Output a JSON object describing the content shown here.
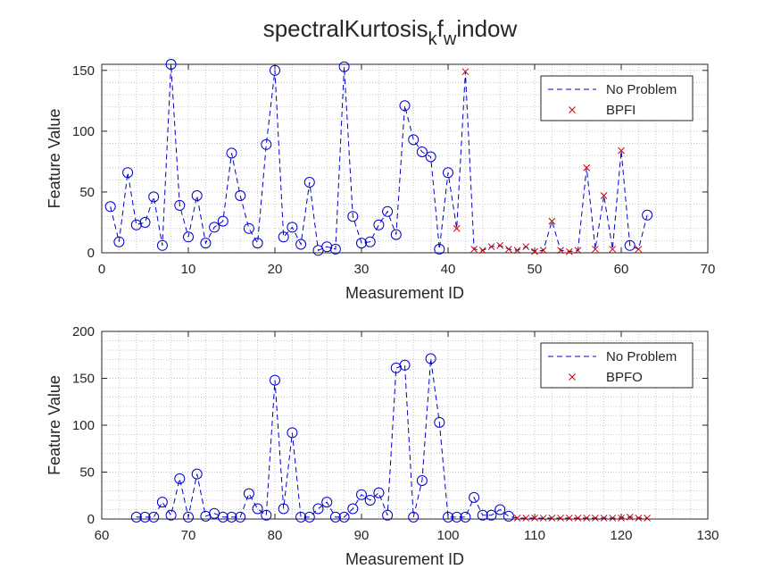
{
  "figure": {
    "title_main": "spectralKurtosis",
    "title_sub1": "k",
    "title_mid": "f",
    "title_sub2": "w",
    "title_end": "indow"
  },
  "chart_data": [
    {
      "type": "line",
      "xlabel": "Measurement ID",
      "ylabel": "Feature Value",
      "xlim": [
        0,
        70
      ],
      "ylim": [
        0,
        155
      ],
      "xticks": [
        0,
        10,
        20,
        30,
        40,
        50,
        60,
        70
      ],
      "yticks": [
        0,
        50,
        100,
        150
      ],
      "grid": "minor-dotted",
      "legend_position": "top-right",
      "legend": [
        "No Problem",
        "BPFI"
      ],
      "line_color": "#0000cc",
      "fault_color": "#cc0000",
      "x": [
        1,
        2,
        3,
        4,
        5,
        6,
        7,
        8,
        9,
        10,
        11,
        12,
        13,
        14,
        15,
        16,
        17,
        18,
        19,
        20,
        21,
        22,
        23,
        24,
        25,
        26,
        27,
        28,
        29,
        30,
        31,
        32,
        33,
        34,
        35,
        36,
        37,
        38,
        39,
        40,
        41,
        42,
        43,
        44,
        45,
        46,
        47,
        48,
        49,
        50,
        51,
        52,
        53,
        54,
        55,
        56,
        57,
        58,
        59,
        60,
        61,
        62,
        63
      ],
      "y": [
        38,
        9,
        66,
        23,
        25,
        46,
        6,
        155,
        39,
        13,
        47,
        8,
        21,
        26,
        82,
        47,
        20,
        8,
        89,
        150,
        13,
        21,
        7,
        58,
        2,
        5,
        3,
        153,
        30,
        8,
        9,
        23,
        34,
        15,
        121,
        93,
        83,
        79,
        3,
        66,
        20,
        149,
        3,
        2,
        5,
        6,
        3,
        2,
        5,
        1,
        2,
        26,
        2,
        1,
        2,
        70,
        3,
        47,
        3,
        84,
        6,
        3,
        31
      ],
      "markers": [
        "o",
        "o",
        "o",
        "o",
        "o",
        "o",
        "o",
        "o",
        "o",
        "o",
        "o",
        "o",
        "o",
        "o",
        "o",
        "o",
        "o",
        "o",
        "o",
        "o",
        "o",
        "o",
        "o",
        "o",
        "o",
        "o",
        "o",
        "o",
        "o",
        "o",
        "o",
        "o",
        "o",
        "o",
        "o",
        "o",
        "o",
        "o",
        "o",
        "o",
        "x",
        "x",
        "x",
        "x",
        "x",
        "x",
        "x",
        "x",
        "x",
        "x",
        "x",
        "x",
        "x",
        "x",
        "x",
        "x",
        "x",
        "x",
        "x",
        "x",
        "o",
        "x",
        "o"
      ]
    },
    {
      "type": "line",
      "xlabel": "Measurement ID",
      "ylabel": "Feature Value",
      "xlim": [
        60,
        130
      ],
      "ylim": [
        0,
        200
      ],
      "xticks": [
        60,
        70,
        80,
        90,
        100,
        110,
        120,
        130
      ],
      "yticks": [
        0,
        50,
        100,
        150,
        200
      ],
      "grid": "minor-dotted",
      "legend_position": "top-right",
      "legend": [
        "No Problem",
        "BPFO"
      ],
      "line_color": "#0000cc",
      "fault_color": "#cc0000",
      "x": [
        64,
        65,
        66,
        67,
        68,
        69,
        70,
        71,
        72,
        73,
        74,
        75,
        76,
        77,
        78,
        79,
        80,
        81,
        82,
        83,
        84,
        85,
        86,
        87,
        88,
        89,
        90,
        91,
        92,
        93,
        94,
        95,
        96,
        97,
        98,
        99,
        100,
        101,
        102,
        103,
        104,
        105,
        106,
        107,
        108,
        109,
        110,
        111,
        112,
        113,
        114,
        115,
        116,
        117,
        118,
        119,
        120,
        121,
        122,
        123
      ],
      "y": [
        2,
        2,
        2,
        18,
        4,
        43,
        2,
        48,
        3,
        6,
        2,
        2,
        2,
        27,
        11,
        4,
        148,
        11,
        92,
        2,
        2,
        11,
        18,
        2,
        2,
        11,
        26,
        20,
        28,
        4,
        161,
        164,
        2,
        41,
        171,
        103,
        2,
        2,
        2,
        23,
        4,
        4,
        10,
        3,
        1,
        1,
        1,
        1,
        1,
        1,
        1,
        1,
        1,
        1,
        1,
        1,
        1,
        2,
        1,
        1
      ],
      "markers": [
        "o",
        "o",
        "o",
        "o",
        "o",
        "o",
        "o",
        "o",
        "o",
        "o",
        "o",
        "o",
        "o",
        "o",
        "o",
        "o",
        "o",
        "o",
        "o",
        "o",
        "o",
        "o",
        "o",
        "o",
        "o",
        "o",
        "o",
        "o",
        "o",
        "o",
        "o",
        "o",
        "o",
        "o",
        "o",
        "o",
        "o",
        "o",
        "o",
        "o",
        "o",
        "o",
        "o",
        "o",
        "x",
        "x",
        "x",
        "x",
        "x",
        "x",
        "x",
        "x",
        "x",
        "x",
        "x",
        "x",
        "x",
        "x",
        "x",
        "x"
      ]
    }
  ]
}
